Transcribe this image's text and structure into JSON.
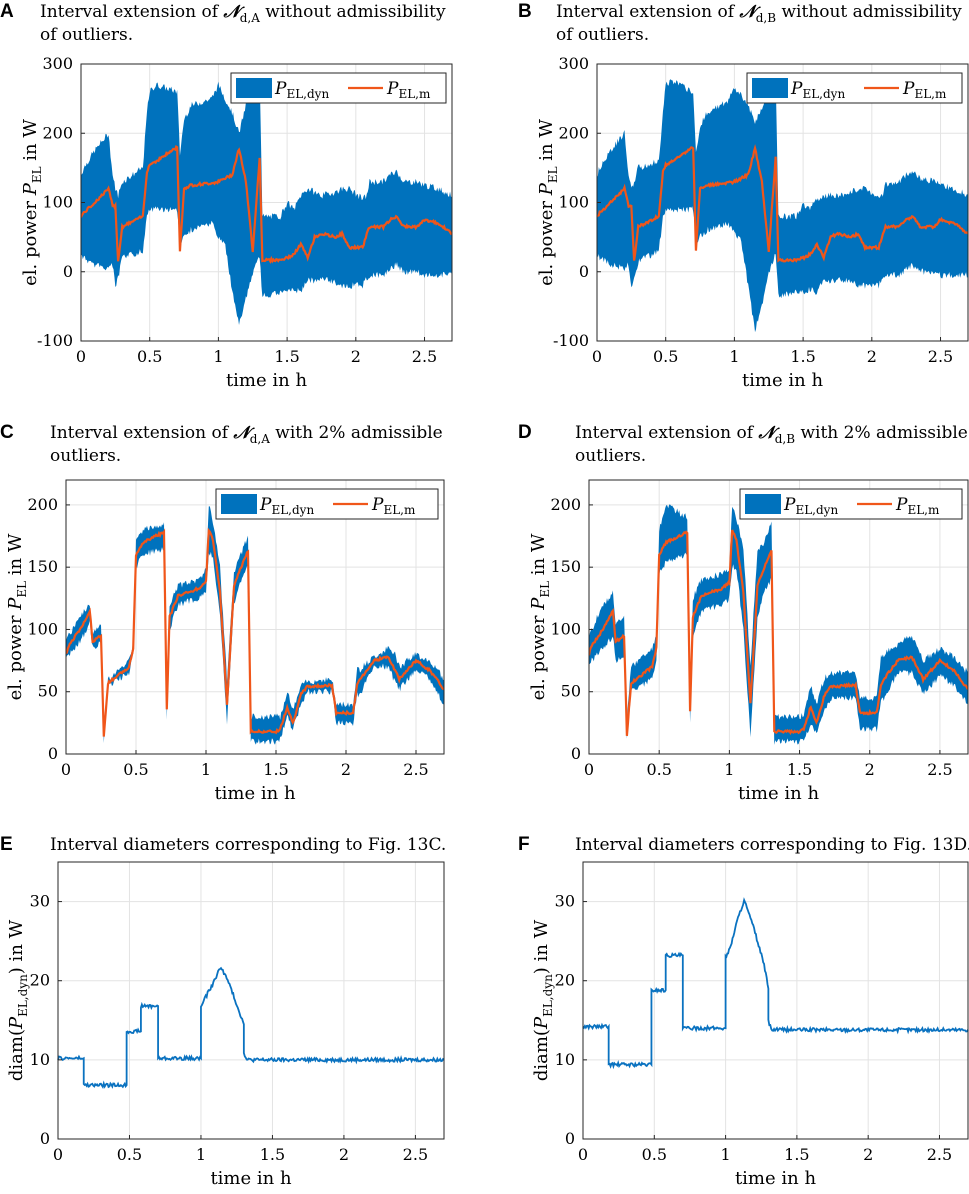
{
  "figure": {
    "colors": {
      "band": "#0072bd",
      "model": "#f0561a",
      "diam": "#0a72c0"
    },
    "x_axis_label": "time in h",
    "y_axis_label_power": {
      "prefix": "el. power ",
      "symbol": "P",
      "subscript": "EL",
      "suffix": " in W"
    },
    "y_axis_label_diam": {
      "prefix": "diam(",
      "symbol": "P",
      "subscript": "EL,dyn",
      "suffix": ") in W"
    },
    "legend": [
      {
        "symbol": "P",
        "subscript": "EL,dyn"
      },
      {
        "symbol": "P",
        "subscript": "EL,m"
      }
    ]
  },
  "chart_data": [
    {
      "id": "A",
      "type": "area",
      "title_line1_pre": "Interval extension of ",
      "title_symbol": "𝒩",
      "title_subscript": "d,A",
      "title_line1_post": " without admissibility",
      "title_line2": "of outliers.",
      "xlim": [
        0,
        2.7
      ],
      "ylim": [
        -100,
        300
      ],
      "xticks": [
        "0",
        "0.5",
        "1",
        "1.5",
        "2",
        "2.5"
      ],
      "yticks": [
        "-100",
        "0",
        "100",
        "200",
        "300"
      ],
      "x": [
        0,
        0.02,
        0.1,
        0.2,
        0.23,
        0.25,
        0.27,
        0.3,
        0.45,
        0.48,
        0.5,
        0.55,
        0.7,
        0.72,
        0.75,
        0.8,
        0.95,
        1.0,
        1.05,
        1.1,
        1.15,
        1.2,
        1.25,
        1.3,
        1.32,
        1.45,
        1.5,
        1.55,
        1.6,
        1.65,
        1.7,
        1.75,
        1.85,
        1.9,
        1.95,
        2.05,
        2.08,
        2.1,
        2.2,
        2.25,
        2.3,
        2.35,
        2.45,
        2.5,
        2.6,
        2.7
      ],
      "upper": [
        140,
        150,
        175,
        200,
        140,
        120,
        110,
        130,
        150,
        230,
        260,
        270,
        260,
        170,
        220,
        240,
        250,
        270,
        250,
        230,
        200,
        240,
        285,
        290,
        80,
        80,
        100,
        90,
        110,
        120,
        115,
        110,
        115,
        120,
        120,
        105,
        110,
        130,
        130,
        140,
        145,
        130,
        130,
        125,
        120,
        110
      ],
      "lower": [
        25,
        20,
        10,
        5,
        10,
        -20,
        -10,
        20,
        30,
        80,
        90,
        90,
        90,
        40,
        50,
        60,
        70,
        50,
        40,
        -30,
        -75,
        -40,
        0,
        20,
        -35,
        -30,
        -30,
        -25,
        -30,
        -10,
        -15,
        -10,
        -15,
        -20,
        -20,
        -20,
        -10,
        -5,
        -5,
        5,
        10,
        0,
        0,
        -5,
        -5,
        -5
      ],
      "model": [
        80,
        85,
        100,
        120,
        95,
        95,
        15,
        65,
        80,
        145,
        155,
        160,
        180,
        30,
        120,
        125,
        128,
        130,
        135,
        140,
        178,
        130,
        30,
        165,
        17,
        17,
        20,
        25,
        40,
        20,
        50,
        55,
        50,
        55,
        35,
        35,
        55,
        65,
        65,
        75,
        80,
        65,
        65,
        75,
        70,
        55
      ]
    },
    {
      "id": "B",
      "type": "area",
      "title_line1_pre": "Interval extension of ",
      "title_symbol": "𝒩",
      "title_subscript": "d,B",
      "title_line1_post": " without admissibility",
      "title_line2": "of outliers.",
      "xlim": [
        0,
        2.7
      ],
      "ylim": [
        -100,
        300
      ],
      "xticks": [
        "0",
        "0.5",
        "1",
        "1.5",
        "2",
        "2.5"
      ],
      "yticks": [
        "-100",
        "0",
        "100",
        "200",
        "300"
      ],
      "x": [
        0,
        0.02,
        0.1,
        0.2,
        0.23,
        0.25,
        0.27,
        0.3,
        0.45,
        0.48,
        0.5,
        0.55,
        0.7,
        0.72,
        0.75,
        0.8,
        0.95,
        1.0,
        1.05,
        1.1,
        1.15,
        1.2,
        1.25,
        1.3,
        1.32,
        1.45,
        1.5,
        1.55,
        1.6,
        1.65,
        1.7,
        1.75,
        1.85,
        1.9,
        1.95,
        2.05,
        2.08,
        2.1,
        2.2,
        2.25,
        2.3,
        2.35,
        2.45,
        2.5,
        2.6,
        2.7
      ],
      "upper": [
        140,
        150,
        175,
        200,
        140,
        120,
        130,
        150,
        160,
        230,
        270,
        275,
        260,
        170,
        210,
        230,
        245,
        265,
        255,
        240,
        215,
        235,
        270,
        285,
        80,
        80,
        95,
        90,
        105,
        110,
        110,
        110,
        115,
        120,
        120,
        110,
        110,
        125,
        130,
        140,
        145,
        135,
        130,
        125,
        120,
        110
      ],
      "lower": [
        25,
        20,
        10,
        5,
        10,
        -20,
        -10,
        15,
        30,
        80,
        90,
        90,
        90,
        40,
        50,
        60,
        70,
        55,
        45,
        -20,
        -85,
        -50,
        0,
        25,
        -35,
        -30,
        -30,
        -25,
        -30,
        -10,
        -15,
        -10,
        -15,
        -20,
        -20,
        -20,
        -10,
        -5,
        -5,
        5,
        10,
        0,
        0,
        -5,
        -5,
        -5
      ],
      "model": [
        80,
        85,
        100,
        120,
        95,
        95,
        15,
        65,
        80,
        145,
        155,
        160,
        180,
        30,
        120,
        125,
        128,
        130,
        135,
        140,
        178,
        130,
        30,
        165,
        17,
        17,
        20,
        25,
        40,
        20,
        50,
        55,
        50,
        55,
        35,
        35,
        55,
        65,
        65,
        75,
        80,
        65,
        65,
        75,
        70,
        55
      ]
    },
    {
      "id": "C",
      "type": "area",
      "title_line1_pre": "Interval extension of ",
      "title_symbol": "𝒩",
      "title_subscript": "d,A",
      "title_line1_post": " with 2% admissible",
      "title_line2": "outliers.",
      "xlim": [
        0,
        2.7
      ],
      "ylim": [
        0,
        220
      ],
      "xticks": [
        "0",
        "0.5",
        "1",
        "1.5",
        "2",
        "2.5"
      ],
      "yticks": [
        "0",
        "50",
        "100",
        "150",
        "200"
      ],
      "x": [
        0,
        0.02,
        0.1,
        0.17,
        0.19,
        0.25,
        0.27,
        0.3,
        0.45,
        0.48,
        0.5,
        0.55,
        0.7,
        0.72,
        0.74,
        0.8,
        0.95,
        1.0,
        1.02,
        1.05,
        1.1,
        1.15,
        1.2,
        1.25,
        1.3,
        1.32,
        1.5,
        1.53,
        1.58,
        1.62,
        1.68,
        1.72,
        1.85,
        1.9,
        1.93,
        2.05,
        2.08,
        2.1,
        2.2,
        2.3,
        2.35,
        2.38,
        2.5,
        2.6,
        2.7
      ],
      "upper": [
        90,
        95,
        110,
        120,
        95,
        105,
        25,
        60,
        75,
        90,
        170,
        180,
        185,
        45,
        120,
        135,
        140,
        148,
        200,
        185,
        150,
        60,
        145,
        160,
        175,
        30,
        30,
        30,
        50,
        35,
        55,
        58,
        60,
        60,
        40,
        40,
        68,
        68,
        78,
        85,
        80,
        70,
        80,
        75,
        60
      ],
      "lower": [
        75,
        80,
        90,
        105,
        85,
        90,
        10,
        55,
        65,
        80,
        150,
        160,
        165,
        30,
        100,
        120,
        125,
        130,
        160,
        160,
        110,
        25,
        120,
        140,
        150,
        10,
        10,
        12,
        30,
        20,
        40,
        50,
        50,
        50,
        25,
        25,
        48,
        48,
        70,
        70,
        58,
        52,
        68,
        60,
        40
      ],
      "model": [
        80,
        87,
        100,
        115,
        90,
        95,
        15,
        57,
        70,
        85,
        160,
        170,
        178,
        35,
        110,
        127,
        133,
        138,
        180,
        172,
        130,
        40,
        135,
        150,
        163,
        18,
        18,
        20,
        38,
        25,
        48,
        54,
        55,
        55,
        33,
        33,
        55,
        60,
        75,
        78,
        67,
        60,
        75,
        67,
        52
      ]
    },
    {
      "id": "D",
      "type": "area",
      "title_line1_pre": "Interval extension of ",
      "title_symbol": "𝒩",
      "title_subscript": "d,B",
      "title_line1_post": " with 2% admissible",
      "title_line2": "outliers.",
      "xlim": [
        0,
        2.7
      ],
      "ylim": [
        0,
        220
      ],
      "xticks": [
        "0",
        "0.5",
        "1",
        "1.5",
        "2",
        "2.5"
      ],
      "yticks": [
        "0",
        "50",
        "100",
        "150",
        "200"
      ],
      "x": [
        0,
        0.02,
        0.1,
        0.17,
        0.19,
        0.25,
        0.27,
        0.3,
        0.45,
        0.48,
        0.5,
        0.55,
        0.7,
        0.72,
        0.74,
        0.8,
        0.95,
        1.0,
        1.02,
        1.05,
        1.1,
        1.15,
        1.2,
        1.25,
        1.3,
        1.32,
        1.5,
        1.53,
        1.58,
        1.62,
        1.68,
        1.72,
        1.85,
        1.9,
        1.93,
        2.05,
        2.08,
        2.1,
        2.2,
        2.3,
        2.35,
        2.38,
        2.5,
        2.6,
        2.7
      ],
      "upper": [
        95,
        100,
        120,
        130,
        105,
        110,
        30,
        70,
        85,
        95,
        180,
        200,
        190,
        50,
        125,
        140,
        145,
        150,
        200,
        190,
        165,
        70,
        165,
        170,
        185,
        30,
        30,
        32,
        55,
        40,
        62,
        65,
        65,
        65,
        45,
        45,
        80,
        80,
        88,
        95,
        85,
        75,
        85,
        78,
        65
      ],
      "lower": [
        70,
        75,
        85,
        95,
        75,
        80,
        10,
        50,
        60,
        75,
        145,
        155,
        160,
        25,
        95,
        115,
        120,
        125,
        150,
        150,
        100,
        15,
        110,
        130,
        140,
        10,
        10,
        10,
        25,
        15,
        35,
        45,
        45,
        45,
        20,
        20,
        45,
        45,
        65,
        65,
        55,
        48,
        63,
        55,
        40
      ],
      "model": [
        80,
        87,
        100,
        115,
        90,
        95,
        15,
        57,
        70,
        85,
        160,
        170,
        178,
        35,
        110,
        127,
        133,
        138,
        180,
        172,
        130,
        40,
        135,
        150,
        163,
        18,
        18,
        20,
        38,
        25,
        48,
        54,
        55,
        55,
        33,
        33,
        55,
        60,
        75,
        78,
        67,
        60,
        75,
        67,
        52
      ]
    },
    {
      "id": "E",
      "type": "line",
      "title": "Interval diameters corresponding to Fig. 13C.",
      "xlim": [
        0,
        2.7
      ],
      "ylim": [
        0,
        35
      ],
      "xticks": [
        "0",
        "0.5",
        "1",
        "1.5",
        "2",
        "2.5"
      ],
      "yticks": [
        "0",
        "10",
        "20",
        "30"
      ],
      "x": [
        0,
        0.18,
        0.18,
        0.48,
        0.48,
        0.58,
        0.58,
        0.7,
        0.7,
        1.0,
        1.0,
        1.02,
        1.08,
        1.14,
        1.2,
        1.27,
        1.3,
        1.3,
        1.32,
        2.7
      ],
      "y": [
        10.2,
        10.2,
        6.8,
        6.8,
        13.6,
        13.6,
        16.8,
        16.8,
        10.2,
        10.2,
        16.7,
        17.5,
        19.5,
        21.8,
        19.5,
        16,
        14.5,
        11,
        10,
        10
      ]
    },
    {
      "id": "F",
      "type": "line",
      "title": "Interval diameters corresponding to Fig. 13D.",
      "xlim": [
        0,
        2.7
      ],
      "ylim": [
        0,
        35
      ],
      "xticks": [
        "0",
        "0.5",
        "1",
        "1.5",
        "2",
        "2.5"
      ],
      "yticks": [
        "0",
        "10",
        "20",
        "30"
      ],
      "x": [
        0,
        0.18,
        0.18,
        0.48,
        0.48,
        0.58,
        0.58,
        0.7,
        0.7,
        1.0,
        1.0,
        1.03,
        1.08,
        1.13,
        1.2,
        1.27,
        1.3,
        1.3,
        1.32,
        2.7
      ],
      "y": [
        14.2,
        14.2,
        9.4,
        9.4,
        18.8,
        18.8,
        23.2,
        23.2,
        14,
        14,
        23,
        24,
        27.5,
        30.2,
        26.5,
        22,
        19,
        15,
        13.8,
        13.8
      ]
    }
  ]
}
